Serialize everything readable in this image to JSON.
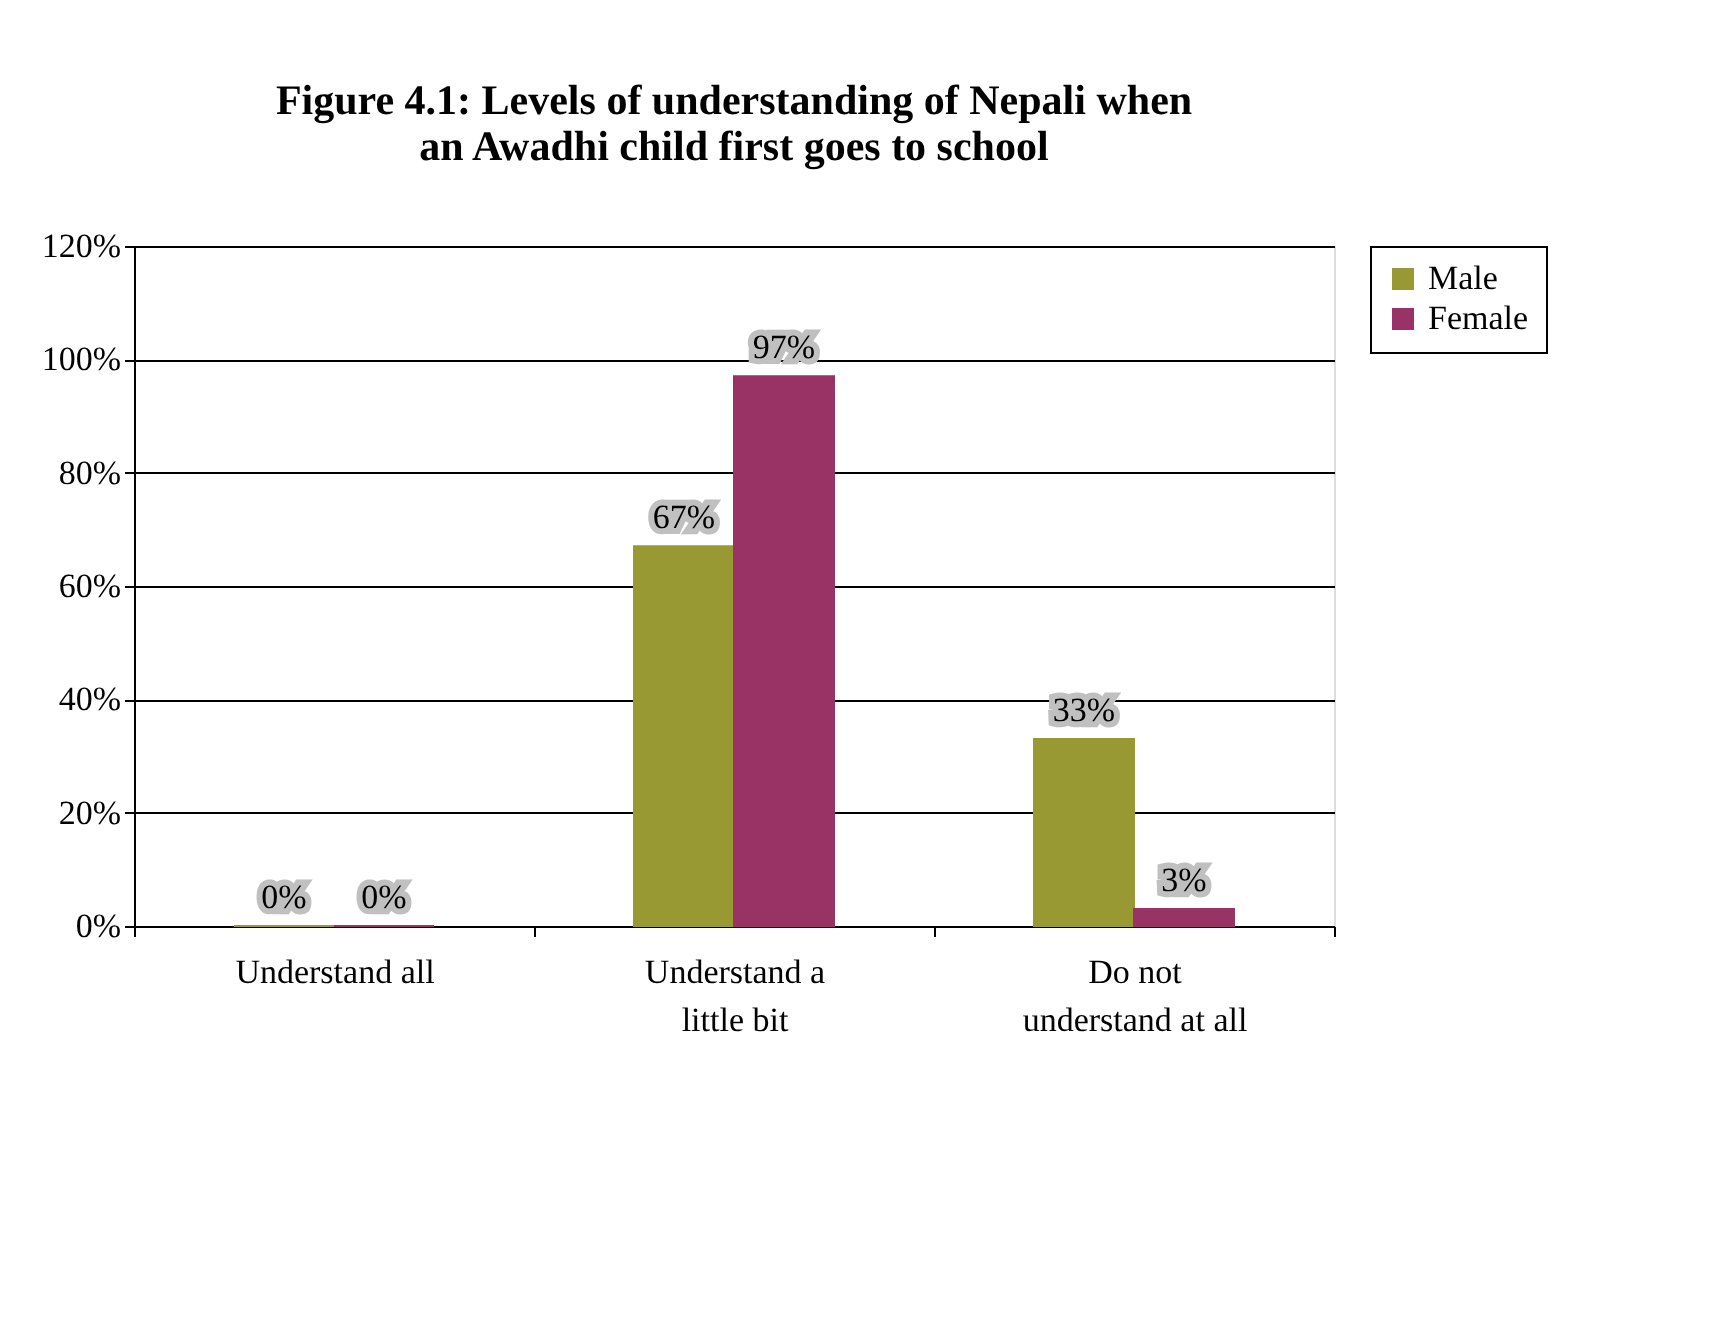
{
  "chart_data": {
    "type": "bar",
    "title": "Figure 4.1: Levels of understanding of Nepali when\nan Awadhi child first goes to school",
    "categories": [
      "Understand all",
      "Understand a\nlittle bit",
      "Do not\nunderstand at all"
    ],
    "series": [
      {
        "name": "Male",
        "color": "#999933",
        "values": [
          0,
          67,
          33
        ],
        "value_labels": [
          "0%",
          "67%",
          "33%"
        ]
      },
      {
        "name": "Female",
        "color": "#993366",
        "values": [
          0,
          97,
          3
        ],
        "value_labels": [
          "0%",
          "97%",
          "3%"
        ]
      }
    ],
    "ylim": [
      0,
      120
    ],
    "yticks": [
      {
        "value": 0,
        "label": "0%"
      },
      {
        "value": 20,
        "label": "20%"
      },
      {
        "value": 40,
        "label": "40%"
      },
      {
        "value": 60,
        "label": "60%"
      },
      {
        "value": 80,
        "label": "80%"
      },
      {
        "value": 100,
        "label": "100%"
      },
      {
        "value": 120,
        "label": "120%"
      }
    ],
    "grid": "y",
    "legend": "right"
  }
}
